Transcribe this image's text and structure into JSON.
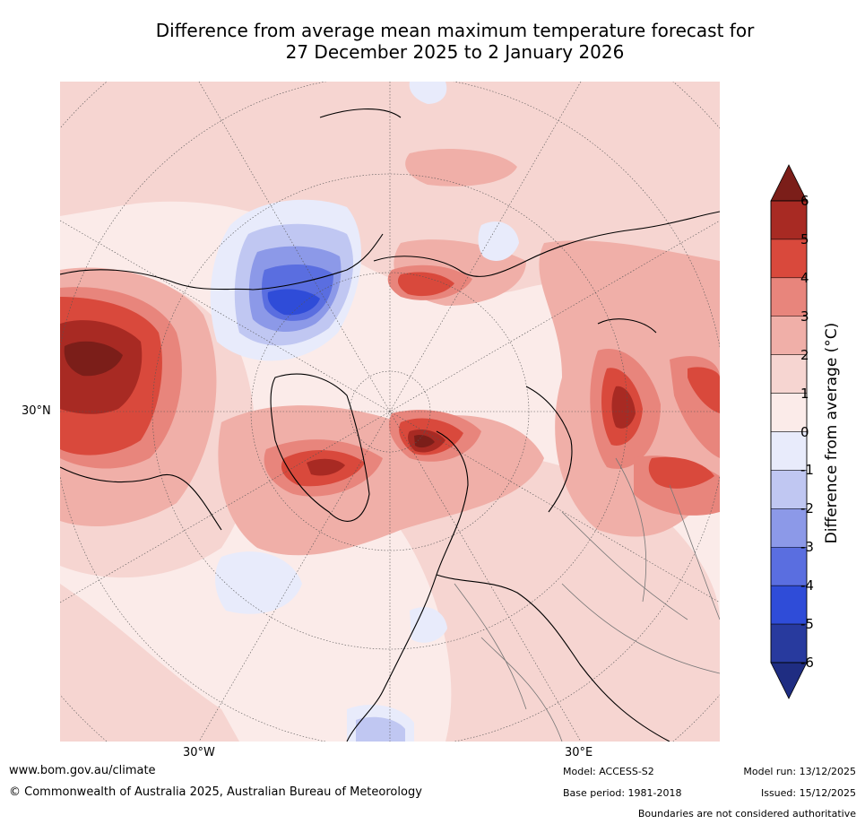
{
  "title": {
    "line1": "Difference from average mean maximum temperature forecast for",
    "line2": "27 December 2025 to 2 January 2026"
  },
  "axis_labels": {
    "lat_30n": "30°N",
    "lon_30w": "30°W",
    "lon_30e": "30°E"
  },
  "colorbar": {
    "label": "Difference from average (°C)",
    "ticks": [
      "6",
      "5",
      "4",
      "3",
      "2",
      "1",
      "0",
      "-1",
      "-2",
      "-3",
      "-4",
      "-5",
      "-6"
    ],
    "colors": [
      "#7b1e19",
      "#a82a23",
      "#d9493c",
      "#e8857c",
      "#f0afa8",
      "#f6d5d1",
      "#fbebe9",
      "#e8ebfb",
      "#c0c7f2",
      "#8c99e8",
      "#5a6ee0",
      "#2f4cd8",
      "#283a9e",
      "#1f2d82"
    ]
  },
  "footer": {
    "website": "www.bom.gov.au/climate",
    "copyright": "© Commonwealth of Australia 2025, Australian Bureau of Meteorology",
    "model": "Model: ACCESS-S2",
    "base_period": "Base period: 1981-2018",
    "model_run": "Model run: 13/12/2025",
    "issued": "Issued: 15/12/2025",
    "disclaimer": "Boundaries are not considered authoritative"
  }
}
